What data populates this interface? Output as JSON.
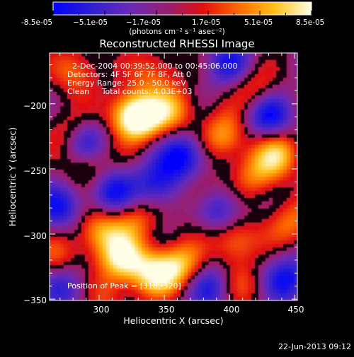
{
  "colors": {
    "background": "#000000",
    "text": "#ffffff",
    "colormap": "rainbow/ahot (blue-purple-red-orange-yellow-white)"
  },
  "colorbar": {
    "tick_labels": [
      "-8.5e-05",
      "−5.1e-05",
      "−1.7e-05",
      "1.7e-05",
      "5.1e-05",
      "8.5e-05"
    ],
    "unit_label": "(photons cm⁻² s⁻¹ asec⁻²)",
    "range": [
      -8.5e-05,
      8.5e-05
    ]
  },
  "info_lines": [
    "2-Dec-2004 00:39:52.000 to 00:45:06.000",
    "Detectors: 4F 5F 6F 7F 8F, Att 0",
    "Energy Range: 25.0 - 50.0 keV",
    "Clean     Total counts: 4.03E+03"
  ],
  "peak_label": "Position of Peak = [318,-320]",
  "footer_date": "22-Jun-2013 09:12",
  "chart_data": {
    "type": "heatmap",
    "title": "Reconstructed RHESSI Image",
    "xlabel": "Heliocentric X (arcsec)",
    "ylabel": "Heliocentric Y (arcsec)",
    "xlim": [
      262,
      452
    ],
    "ylim": [
      -351,
      -161
    ],
    "x_ticks": [
      {
        "value": 300,
        "label": "300"
      },
      {
        "value": 350,
        "label": "350"
      },
      {
        "value": 400,
        "label": "400"
      },
      {
        "value": 450,
        "label": "450"
      }
    ],
    "y_ticks": [
      {
        "value": -200,
        "label": "−200"
      },
      {
        "value": -250,
        "label": "−250"
      },
      {
        "value": -300,
        "label": "−300"
      },
      {
        "value": -350,
        "label": "−350"
      }
    ],
    "value_range": [
      -8.5e-05,
      8.5e-05
    ],
    "peak": {
      "x": 318,
      "y": -320
    },
    "grid": false,
    "legend": "colorbar at top",
    "sources": [
      {
        "x": 318,
        "y": -320,
        "value": 8.5e-05
      },
      {
        "x": 343,
        "y": -330,
        "value": 7.5e-05
      },
      {
        "x": 364,
        "y": -325,
        "value": 7e-05
      },
      {
        "x": 300,
        "y": -298,
        "value": 6.5e-05
      },
      {
        "x": 327,
        "y": -288,
        "value": 5e-05
      },
      {
        "x": 332,
        "y": -212,
        "value": 7.5e-05
      },
      {
        "x": 323,
        "y": -208,
        "value": 6.5e-05
      },
      {
        "x": 357,
        "y": -205,
        "value": 6e-05
      },
      {
        "x": 395,
        "y": -225,
        "value": 6.5e-05
      },
      {
        "x": 437,
        "y": -238,
        "value": 7e-05
      },
      {
        "x": 420,
        "y": -255,
        "value": 5e-05
      },
      {
        "x": 404,
        "y": -305,
        "value": 6e-05
      },
      {
        "x": 448,
        "y": -292,
        "value": 5e-05
      },
      {
        "x": 283,
        "y": -175,
        "value": 5e-05
      },
      {
        "x": 278,
        "y": -222,
        "value": 5.5e-05
      },
      {
        "x": 292,
        "y": -248,
        "value": 4.5e-05
      },
      {
        "x": 418,
        "y": -188,
        "value": 4.5e-05
      },
      {
        "x": 378,
        "y": -270,
        "value": 4.5e-05
      },
      {
        "x": 268,
        "y": -318,
        "value": 4e-05
      },
      {
        "x": 342,
        "y": -175,
        "value": 4.5e-05
      },
      {
        "x": 410,
        "y": -340,
        "value": 3.5e-05
      },
      {
        "x": 305,
        "y": -350,
        "value": 3.5e-05
      },
      {
        "x": 288,
        "y": -228,
        "value": -7.5e-05
      },
      {
        "x": 310,
        "y": -268,
        "value": -7e-05
      },
      {
        "x": 365,
        "y": -240,
        "value": -8e-05
      },
      {
        "x": 345,
        "y": -263,
        "value": -6e-05
      },
      {
        "x": 392,
        "y": -280,
        "value": -6.5e-05
      },
      {
        "x": 430,
        "y": -210,
        "value": -7e-05
      },
      {
        "x": 445,
        "y": -335,
        "value": -6.5e-05
      },
      {
        "x": 385,
        "y": -340,
        "value": -6e-05
      },
      {
        "x": 270,
        "y": -280,
        "value": -6e-05
      },
      {
        "x": 400,
        "y": -170,
        "value": -5.5e-05
      },
      {
        "x": 275,
        "y": -340,
        "value": -5e-05
      }
    ]
  }
}
